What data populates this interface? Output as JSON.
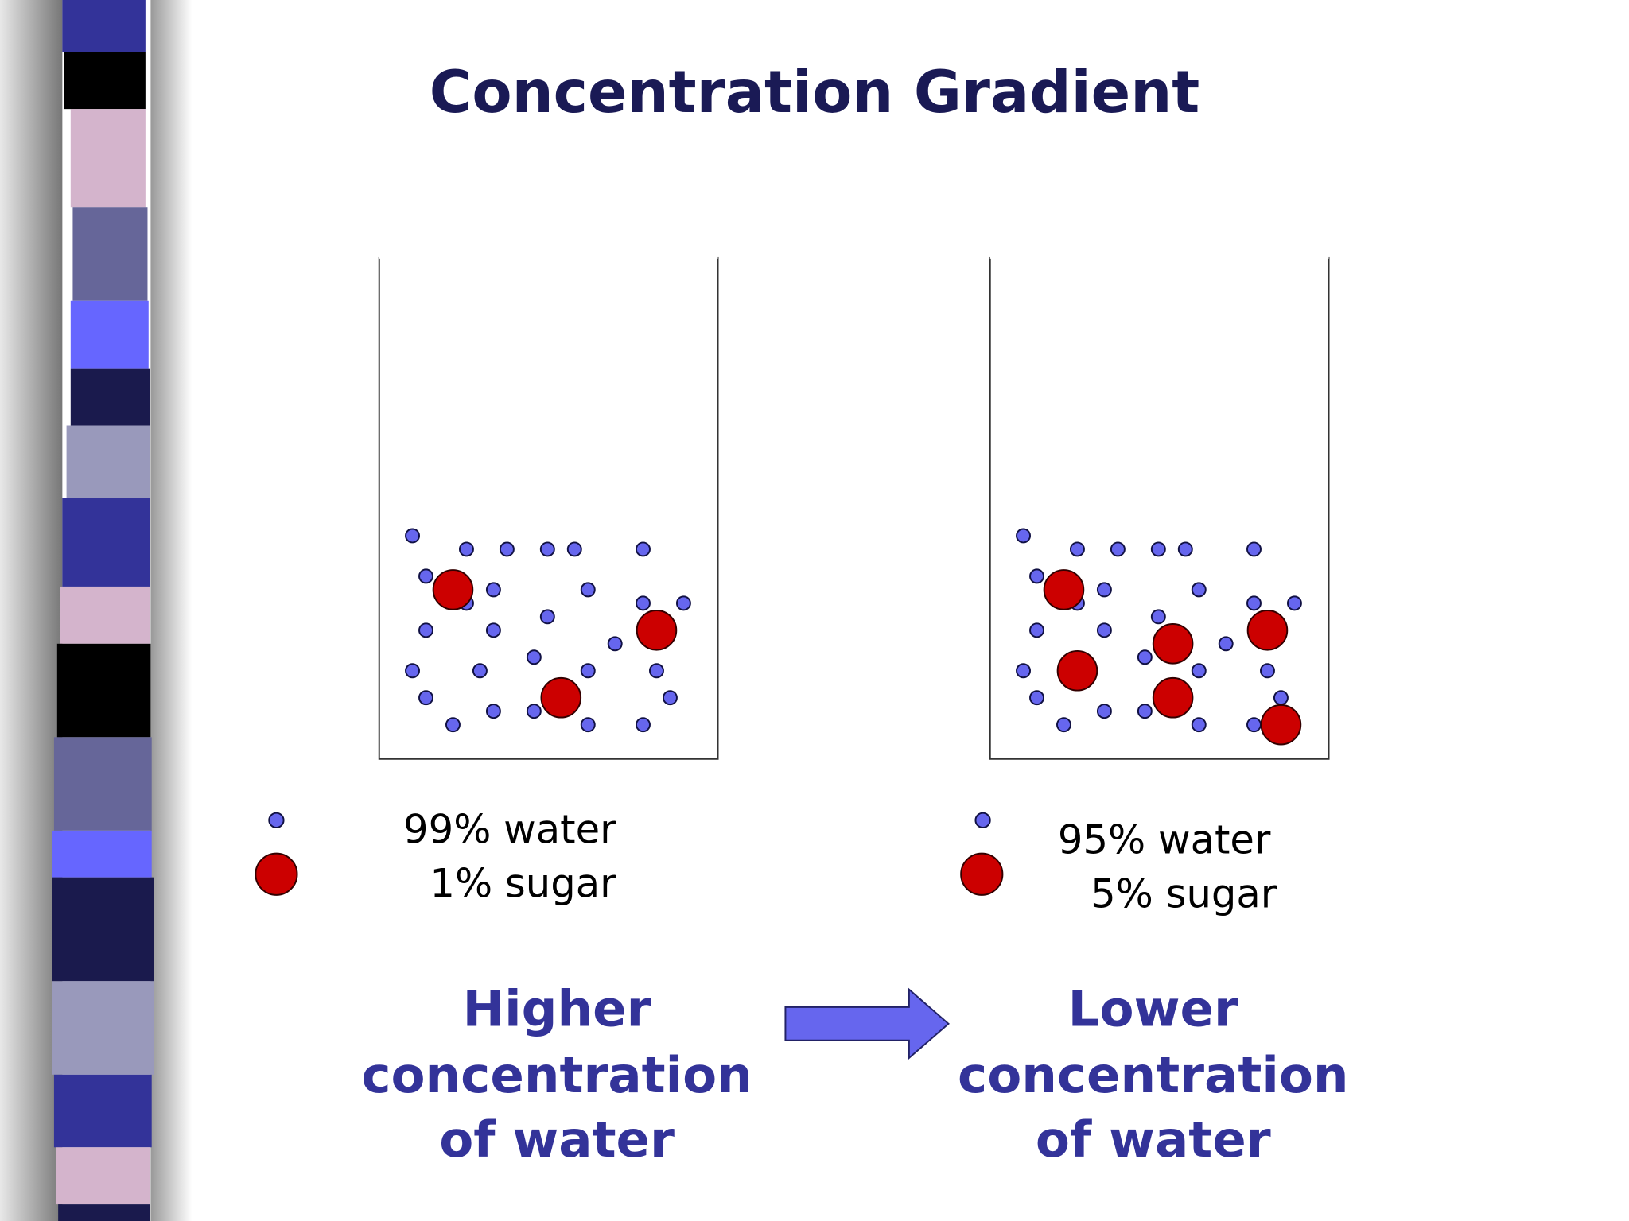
{
  "title": "Concentration Gradient",
  "beakers": [
    {
      "water": "99% water",
      "sugar": "1% sugar",
      "caption": [
        "Higher",
        "concentration",
        "of water"
      ]
    },
    {
      "water": "95% water",
      "sugar": "5% sugar",
      "caption": [
        "Lower",
        "concentration",
        "of water"
      ]
    }
  ]
}
